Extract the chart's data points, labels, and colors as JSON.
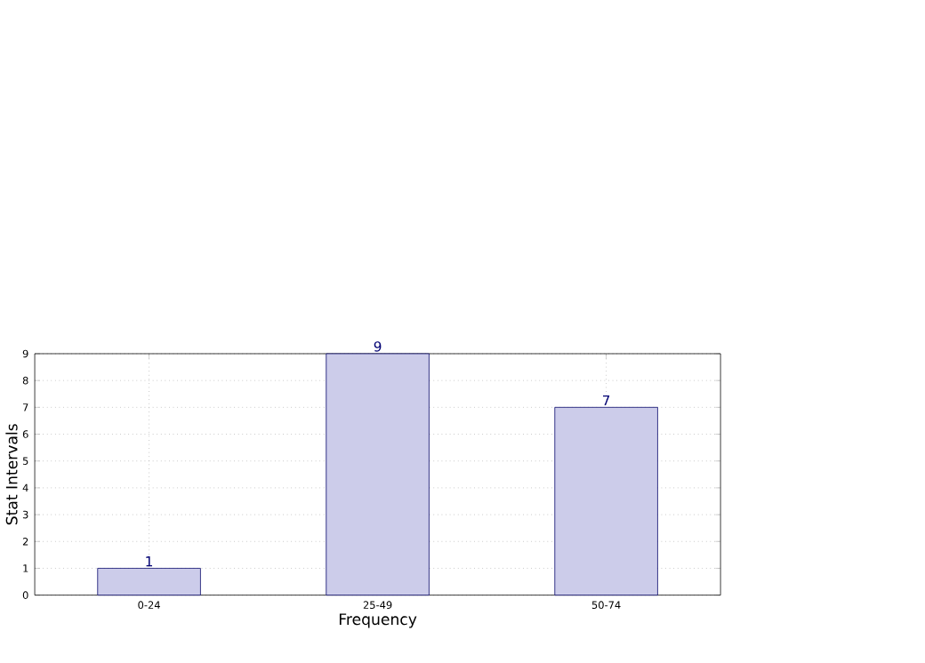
{
  "chart_data": {
    "type": "bar",
    "xlabel": "Frequency",
    "ylabel": "Stat Intervals",
    "categories": [
      "0-24",
      "25-49",
      "50-74"
    ],
    "values": [
      1,
      9,
      7
    ],
    "color": "#ccccea",
    "ylim": [
      0,
      9
    ],
    "yticks": [
      0,
      1,
      2,
      3,
      4,
      5,
      6,
      7,
      8,
      9
    ],
    "grid": true,
    "data_labels": true
  }
}
